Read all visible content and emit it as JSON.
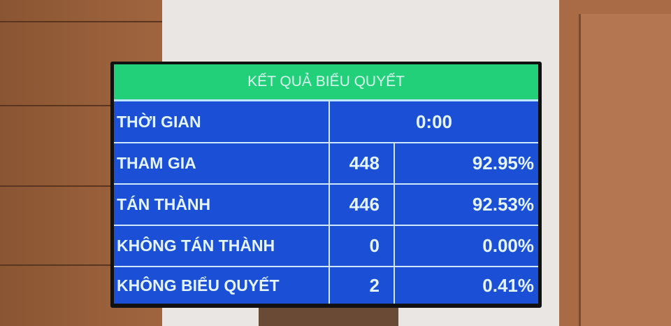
{
  "title": "KẾT QUẢ BIỂU QUYẾT",
  "time": {
    "label": "THỜI GIAN",
    "value": "0:00"
  },
  "rows": [
    {
      "label": "THAM GIA",
      "count": "448",
      "percent": "92.95%"
    },
    {
      "label": "TÁN THÀNH",
      "count": "446",
      "percent": "92.53%"
    },
    {
      "label": "KHÔNG TÁN THÀNH",
      "count": "0",
      "percent": "0.00%"
    },
    {
      "label": "KHÔNG BIỂU QUYẾT",
      "count": "2",
      "percent": "0.41%"
    }
  ],
  "colors": {
    "header": "#22d07a",
    "panel": "#1b4fd6",
    "text": "#e4f4ff"
  }
}
